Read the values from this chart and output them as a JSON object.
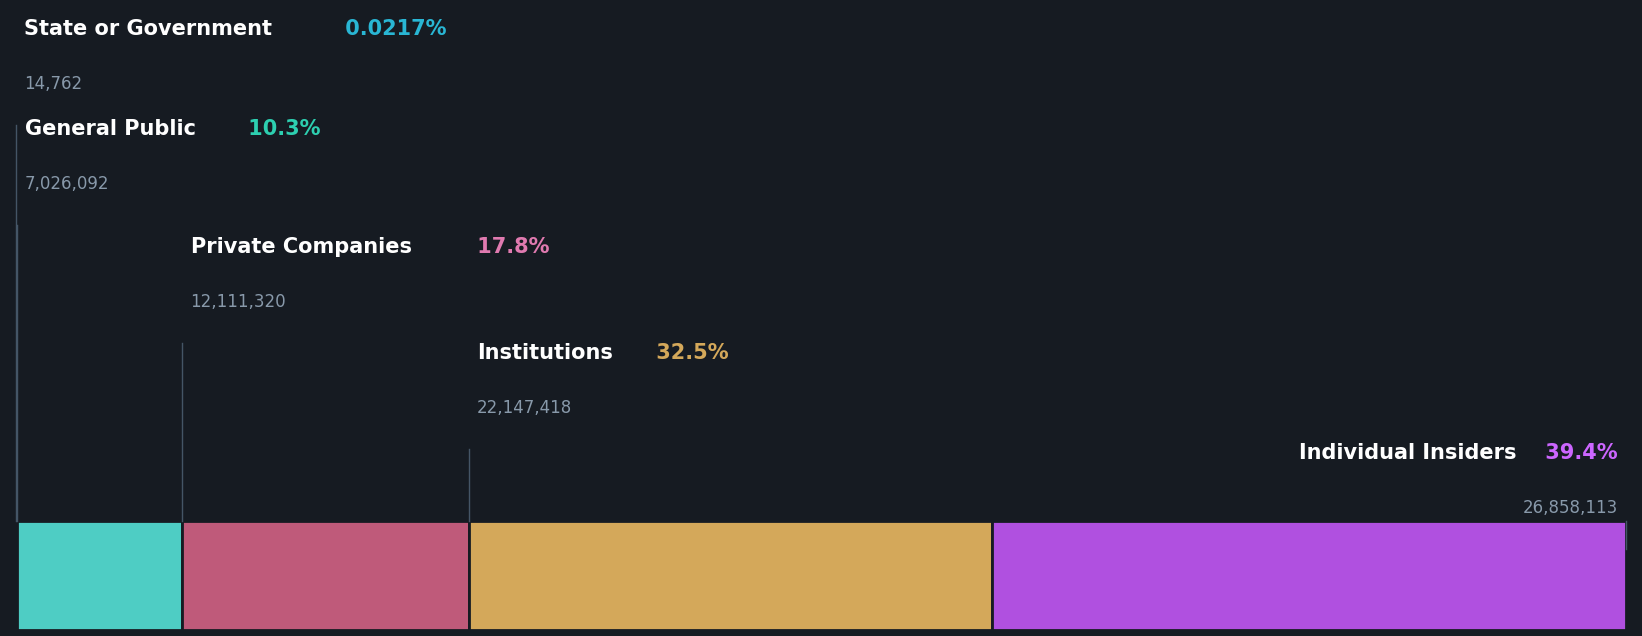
{
  "background_color": "#161b22",
  "segments": [
    {
      "label": "State or Government",
      "pct": "0.0217%",
      "value": "14,762",
      "share": 0.0217,
      "bar_color": "#4ecdc4",
      "pct_color": "#29b6d4"
    },
    {
      "label": "General Public",
      "pct": "10.3%",
      "value": "7,026,092",
      "share": 10.3,
      "bar_color": "#4ecdc4",
      "pct_color": "#2dcfb0"
    },
    {
      "label": "Private Companies",
      "pct": "17.8%",
      "value": "12,111,320",
      "share": 17.8,
      "bar_color": "#bf5a7a",
      "pct_color": "#e07ab0"
    },
    {
      "label": "Institutions",
      "pct": "32.5%",
      "value": "22,147,418",
      "share": 32.5,
      "bar_color": "#d4a85a",
      "pct_color": "#d4a85a"
    },
    {
      "label": "Individual Insiders",
      "pct": "39.4%",
      "value": "26,858,113",
      "share": 39.4,
      "bar_color": "#b050e0",
      "pct_color": "#cc66ff"
    }
  ],
  "value_color": "#8899aa",
  "label_white": "#ffffff",
  "line_color": "#445566",
  "font_size_label": 15,
  "font_size_value": 12,
  "font_size_pct": 15
}
